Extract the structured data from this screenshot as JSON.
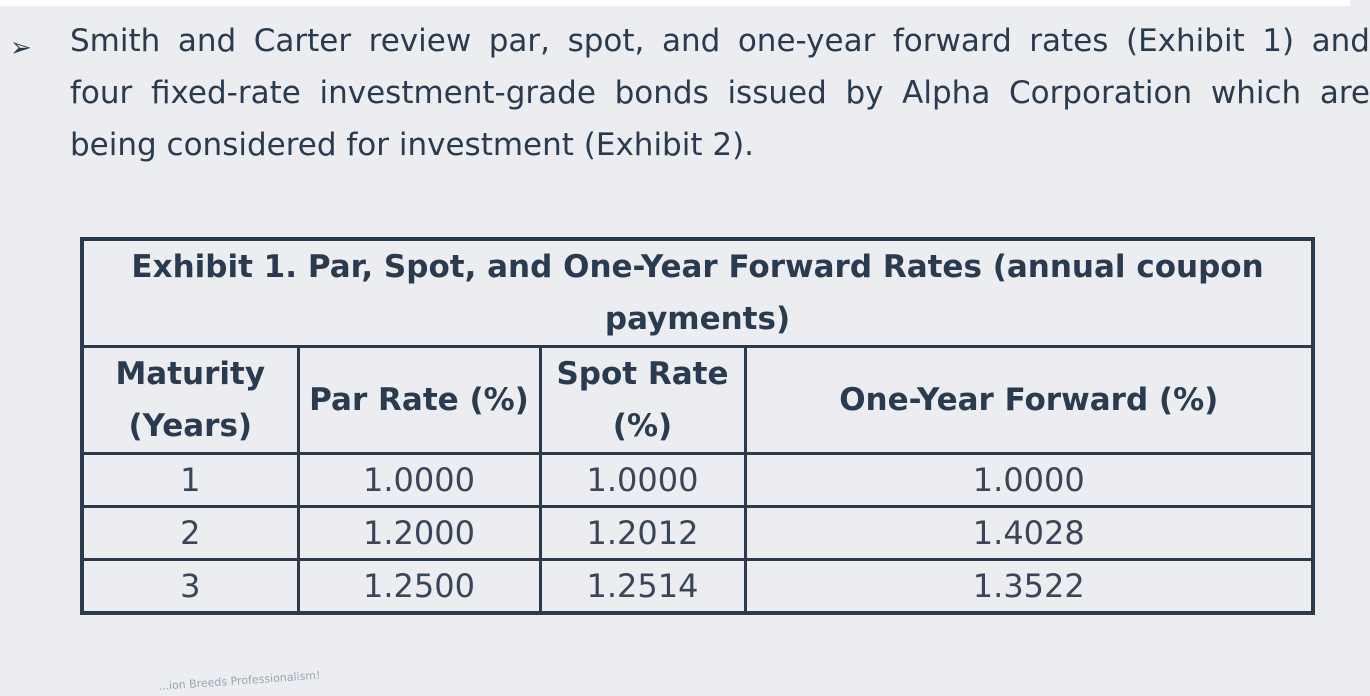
{
  "paragraph": {
    "bullet_symbol": "➢",
    "lines": [
      "Smith and Carter review par, spot, and one-year forward rates (Exhibit 1) and",
      "four fixed-rate investment-grade bonds issued by Alpha Corporation which are",
      "being considered for investment (Exhibit 2)."
    ]
  },
  "exhibit": {
    "title": "Exhibit 1. Par, Spot, and One-Year Forward Rates (annual coupon payments)",
    "headers": {
      "maturity": "Maturity (Years)",
      "par_rate": "Par Rate (%)",
      "spot_rate": "Spot Rate (%)",
      "forward": "One-Year Forward (%)"
    },
    "rows": [
      {
        "maturity": "1",
        "par_rate": "1.0000",
        "spot_rate": "1.0000",
        "forward": "1.0000"
      },
      {
        "maturity": "2",
        "par_rate": "1.2000",
        "spot_rate": "1.2012",
        "forward": "1.4028"
      },
      {
        "maturity": "3",
        "par_rate": "1.2500",
        "spot_rate": "1.2514",
        "forward": "1.3522"
      }
    ]
  },
  "footer": {
    "watermark_text": "...ion Breeds Professionalism!"
  }
}
